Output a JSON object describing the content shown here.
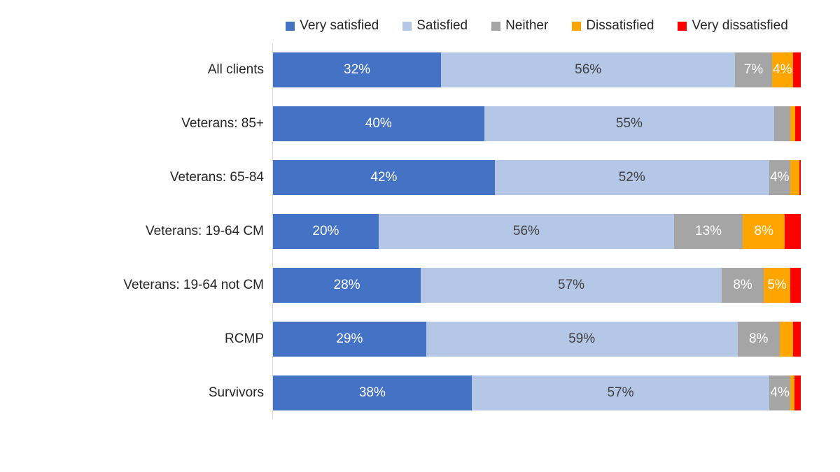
{
  "chart_data": {
    "type": "bar",
    "orientation": "horizontal",
    "stacked": true,
    "unit": "percent",
    "title": "",
    "xlabel": "",
    "ylabel": "",
    "xlim": [
      0,
      100
    ],
    "grid": false,
    "legend_position": "top",
    "background": "#FFFFFF",
    "axis_line_color": "#D9D9D9",
    "categories": [
      "All clients",
      "Veterans: 85+",
      "Veterans: 65-84",
      "Veterans: 19-64 CM",
      "Veterans: 19-64 not CM",
      "RCMP",
      "Survivors"
    ],
    "series": [
      {
        "name": "Very satisfied",
        "color": "#4472C4",
        "label_color": "#FFFFFF",
        "values": [
          32,
          40,
          42,
          20,
          28,
          29,
          38
        ],
        "labels": [
          "32%",
          "40%",
          "42%",
          "20%",
          "28%",
          "29%",
          "38%"
        ]
      },
      {
        "name": "Satisfied",
        "color": "#B4C7E7",
        "label_color": "#404040",
        "values": [
          56,
          55,
          52,
          56,
          57,
          59,
          57
        ],
        "labels": [
          "56%",
          "55%",
          "52%",
          "56%",
          "57%",
          "59%",
          "57%"
        ]
      },
      {
        "name": "Neither",
        "color": "#A5A5A5",
        "label_color": "#FFFFFF",
        "values": [
          7,
          3,
          4,
          13,
          8,
          8,
          4
        ],
        "labels": [
          "7%",
          "",
          "4%",
          "13%",
          "8%",
          "8%",
          "4%"
        ]
      },
      {
        "name": "Dissatisfied",
        "color": "#FFA500",
        "label_color": "#FFFFFF",
        "values": [
          4,
          1,
          1.7,
          8,
          5,
          2.5,
          0.8
        ],
        "labels": [
          "4%",
          "",
          "",
          "8%",
          "5%",
          "",
          ""
        ]
      },
      {
        "name": "Very dissatisfied",
        "color": "#FF0000",
        "label_color": "#FFFFFF",
        "values": [
          1.5,
          1,
          0.3,
          3,
          2,
          1.5,
          1.2
        ],
        "labels": [
          "",
          "",
          "",
          "",
          "",
          "",
          ""
        ]
      }
    ]
  }
}
